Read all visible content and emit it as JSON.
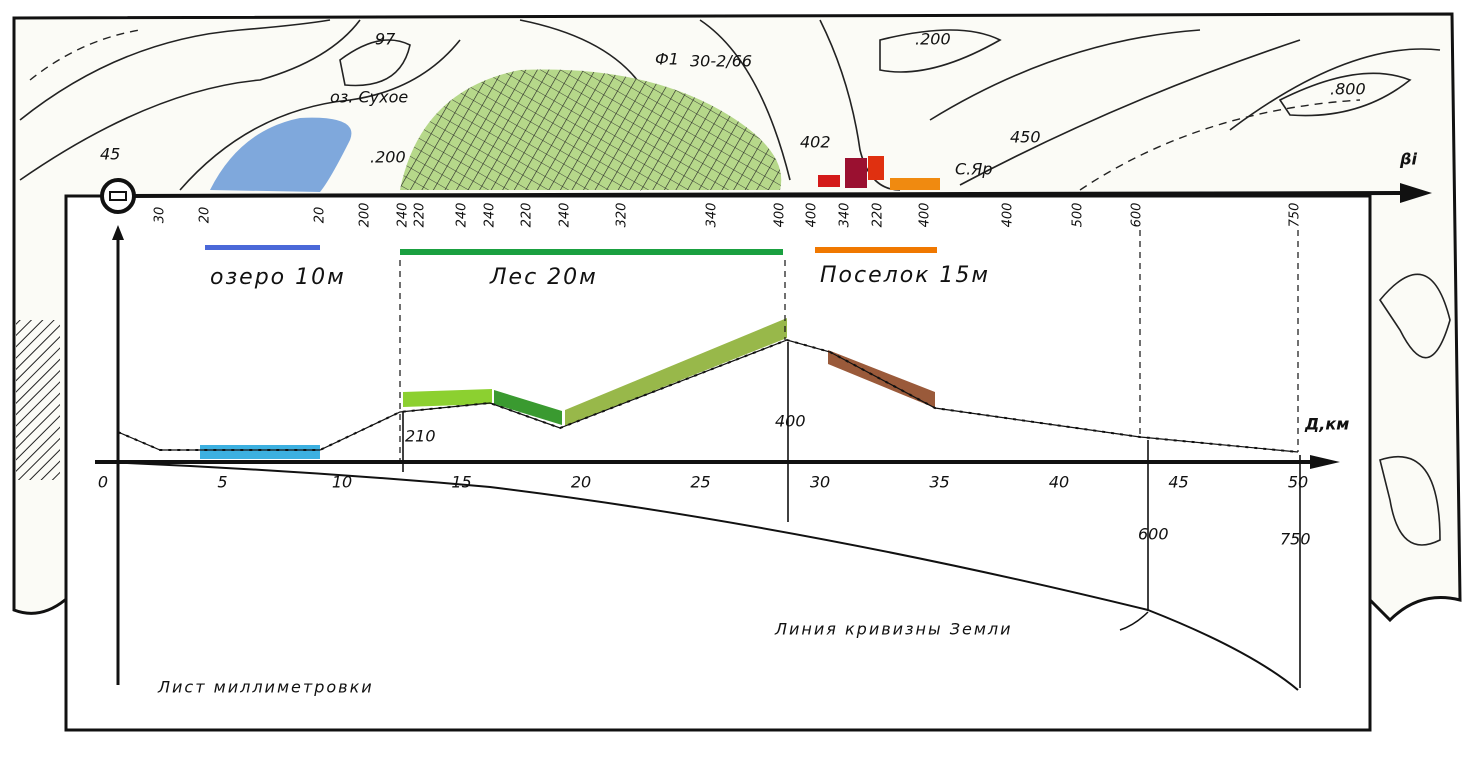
{
  "map_labels": [
    "97",
    "оз. Сухое",
    ".200",
    "45",
    "Ф1",
    "30-2/66",
    "402",
    ".200",
    "450",
    "С.Яр",
    ".800",
    "βi"
  ],
  "heights": [
    "30",
    "20",
    "20",
    "200",
    "240",
    "220",
    "240",
    "240",
    "220",
    "240",
    "320",
    "340",
    "400",
    "400",
    "340",
    "220",
    "400",
    "400",
    "500",
    "600",
    "750"
  ],
  "features": [
    "озеро 10м",
    "Лес 20м",
    "Поселок 15м"
  ],
  "axis": {
    "label": "Д,км",
    "ticks": [
      "0",
      "5",
      "10",
      "15",
      "20",
      "25",
      "30",
      "35",
      "40",
      "45",
      "50"
    ]
  },
  "profile_labels": [
    "210",
    "400",
    "600",
    "750"
  ],
  "annotations": [
    "Линия кривизны Земли",
    "Лист миллиметровки"
  ]
}
